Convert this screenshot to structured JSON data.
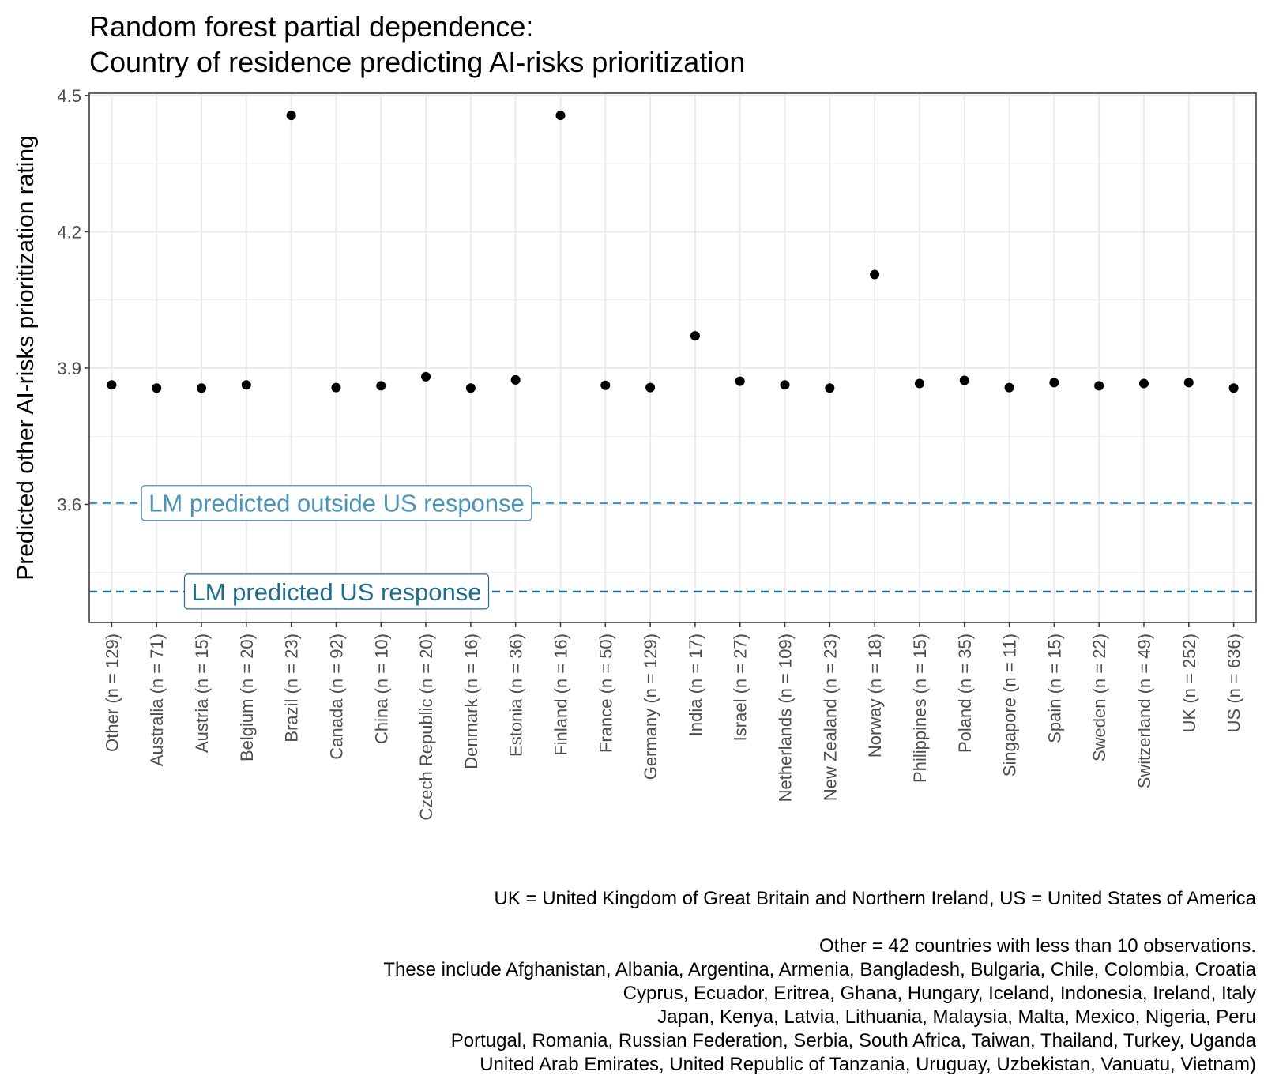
{
  "chart_data": {
    "type": "scatter",
    "title": [
      "Random forest partial dependence:",
      "Country of residence predicting AI-risks prioritization"
    ],
    "xlabel": "",
    "ylabel": "Predicted other AI-risks prioritization rating",
    "ylim": [
      3.34,
      4.505
    ],
    "yticks": [
      "3.6",
      "3.9",
      "4.2",
      "4.5"
    ],
    "ytick_values": [
      3.6,
      3.9,
      4.2,
      4.5
    ],
    "grid": true,
    "categories": [
      "Other (n = 129)",
      "Australia (n = 71)",
      "Austria (n = 15)",
      "Belgium (n = 20)",
      "Brazil (n = 23)",
      "Canada (n = 92)",
      "China (n = 10)",
      "Czech Republic (n = 20)",
      "Denmark (n = 16)",
      "Estonia (n = 36)",
      "Finland (n = 16)",
      "France (n = 50)",
      "Germany (n = 129)",
      "India (n = 17)",
      "Israel (n = 27)",
      "Netherlands (n = 109)",
      "New Zealand (n = 23)",
      "Norway (n = 18)",
      "Philippines (n = 15)",
      "Poland (n = 35)",
      "Singapore (n = 11)",
      "Spain (n = 15)",
      "Sweden (n = 22)",
      "Switzerland (n = 49)",
      "UK (n = 252)",
      "US (n = 636)"
    ],
    "values": [
      3.863,
      3.856,
      3.856,
      3.863,
      4.456,
      3.857,
      3.861,
      3.881,
      3.856,
      3.874,
      4.456,
      3.862,
      3.857,
      3.971,
      3.871,
      3.863,
      3.856,
      4.106,
      3.866,
      3.873,
      3.857,
      3.868,
      3.861,
      3.866,
      3.868,
      3.856
    ],
    "reference_lines": [
      {
        "name": "LM predicted outside US response",
        "value": 3.603,
        "color": "#4a94b8",
        "style": "dashed"
      },
      {
        "name": "LM predicted US response",
        "value": 3.408,
        "color": "#1f6d8c",
        "style": "dashed"
      }
    ],
    "caption": [
      "UK = United Kingdom of Great Britain and Northern Ireland, US = United States of America",
      "",
      "Other = 42 countries with less than 10 observations.",
      "These include Afghanistan, Albania, Argentina, Armenia, Bangladesh, Bulgaria, Chile, Colombia, Croatia",
      "Cyprus, Ecuador, Eritrea, Ghana, Hungary, Iceland, Indonesia, Ireland, Italy",
      "Japan, Kenya, Latvia, Lithuania, Malaysia, Malta, Mexico, Nigeria, Peru",
      "Portugal, Romania, Russian Federation, Serbia, South Africa, Taiwan, Thailand, Turkey, Uganda",
      "United Arab Emirates, United Republic of Tanzania, Uruguay, Uzbekistan, Vanuatu, Vietnam)"
    ]
  }
}
